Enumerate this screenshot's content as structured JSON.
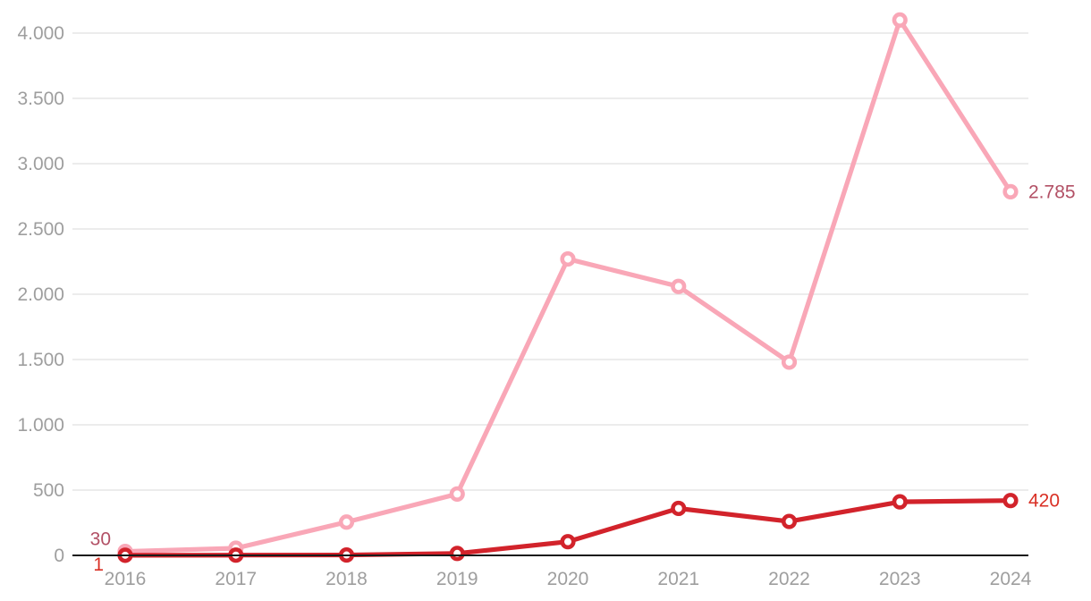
{
  "chart_data": {
    "type": "line",
    "title": "",
    "xlabel": "",
    "ylabel": "",
    "legend": "none",
    "grid": true,
    "ylim": [
      0,
      4000
    ],
    "categories": [
      "2016",
      "2017",
      "2018",
      "2019",
      "2020",
      "2021",
      "2022",
      "2023",
      "2024"
    ],
    "y_ticks": [
      {
        "value": 0,
        "label": "0"
      },
      {
        "value": 500,
        "label": "500"
      },
      {
        "value": 1000,
        "label": "1.000"
      },
      {
        "value": 1500,
        "label": "1.500"
      },
      {
        "value": 2000,
        "label": "2.000"
      },
      {
        "value": 2500,
        "label": "2.500"
      },
      {
        "value": 3000,
        "label": "3.000"
      },
      {
        "value": 3500,
        "label": "3.500"
      },
      {
        "value": 4000,
        "label": "4.000"
      }
    ],
    "series": [
      {
        "name": "pink-series",
        "color": "#F9A7B7",
        "label_color": "#B25065",
        "values": [
          30,
          55,
          255,
          470,
          2270,
          2060,
          1480,
          4100,
          2785
        ],
        "endpoint_labels": {
          "first": "30",
          "last": "2.785"
        }
      },
      {
        "name": "red-series",
        "color": "#D2232B",
        "label_color": "#D93025",
        "values": [
          1,
          2,
          3,
          15,
          105,
          360,
          260,
          410,
          420
        ],
        "endpoint_labels": {
          "first": "1",
          "last": "420"
        }
      }
    ],
    "colors": {
      "grid": "#E6E6E6",
      "axis": "#1A1A1A",
      "tick_labels": "#9E9E9E",
      "marker_fill": "#FFFFFF"
    }
  }
}
